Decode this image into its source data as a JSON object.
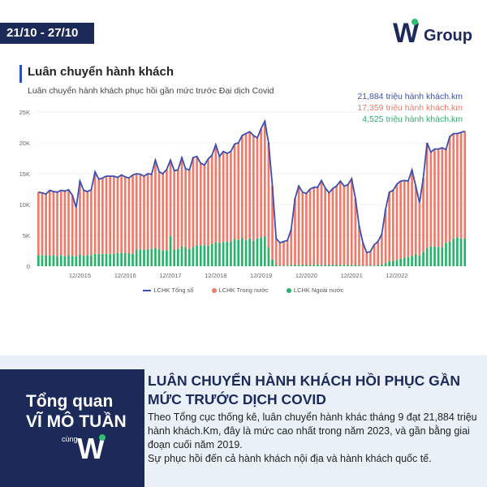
{
  "header": {
    "date_range": "21/10 - 27/10",
    "logo_letter": "W",
    "logo_text": "Group"
  },
  "chart_data": {
    "type": "bar",
    "title": "Luân chuyển hành khách",
    "subtitle": "Luân chuyển hành khách phục hồi gần mức trước Đại dịch Covid",
    "ylim": [
      0,
      25000
    ],
    "y_ticks": [
      "0",
      "5K",
      "10K",
      "15K",
      "20K",
      "25K"
    ],
    "x_ticks": [
      "12/2015",
      "12/2016",
      "12/2017",
      "12/2018",
      "12/2019",
      "12/2020",
      "12/2021",
      "12/2022"
    ],
    "callouts": [
      {
        "text": "21,884 triệu hành khách.km",
        "color": "#3b4fb0"
      },
      {
        "text": "17,359 triệu hành khách.km",
        "color": "#f07a6a"
      },
      {
        "text": "4,525 triệu hành khách.km",
        "color": "#27b36b"
      }
    ],
    "legend": [
      "LCHK Tổng số",
      "LCHK Trong nước",
      "LCHK Ngoài nước"
    ],
    "colors": {
      "total": "#3b4fb0",
      "domestic": "#f07a6a",
      "international": "#27b36b"
    },
    "series": [
      {
        "name": "LCHK Tổng số",
        "values": [
          12000,
          11900,
          11700,
          12300,
          12100,
          12000,
          12300,
          12200,
          12400,
          11500,
          9500,
          13800,
          12300,
          12100,
          12400,
          15300,
          14100,
          14300,
          14600,
          14600,
          14600,
          14400,
          14800,
          14500,
          14300,
          14800,
          15000,
          14900,
          14600,
          15000,
          14900,
          17200,
          15300,
          15000,
          15700,
          17200,
          15500,
          15600,
          17600,
          15800,
          15600,
          17600,
          17800,
          16700,
          16400,
          17400,
          18000,
          19700,
          17800,
          18600,
          18300,
          18600,
          19800,
          20000,
          21200,
          21500,
          21800,
          21200,
          20800,
          22300,
          23500,
          20000,
          13000,
          4500,
          3800,
          4000,
          4200,
          6000,
          11000,
          13000,
          12000,
          11800,
          12500,
          12800,
          12800,
          13900,
          12700,
          11900,
          12600,
          13000,
          13800,
          13000,
          13200,
          14200,
          11000,
          6500,
          3800,
          2200,
          2400,
          3500,
          4000,
          5200,
          9200,
          12000,
          12300,
          13300,
          13800,
          13900,
          13800,
          15600,
          13000,
          10300,
          14300,
          20000,
          18500,
          19000,
          19000,
          19200,
          18900,
          21000,
          21500,
          21500,
          21700,
          21884
        ]
      },
      {
        "name": "LCHK Trong nước",
        "values": [
          10200,
          10100,
          9900,
          10600,
          10300,
          10400,
          10500,
          10600,
          10600,
          9800,
          7900,
          11900,
          10600,
          10300,
          10600,
          13300,
          12100,
          12300,
          12600,
          12600,
          12600,
          12300,
          12600,
          12400,
          12200,
          12800,
          12300,
          12200,
          11900,
          12300,
          12100,
          14200,
          12600,
          12400,
          13100,
          12300,
          12800,
          12800,
          14400,
          12700,
          12800,
          14500,
          14400,
          13300,
          13000,
          14100,
          14400,
          15800,
          14000,
          14700,
          14300,
          14600,
          15400,
          15700,
          16600,
          17300,
          17300,
          17100,
          16300,
          17600,
          18700,
          16900,
          11900,
          4300,
          3700,
          3900,
          4100,
          5800,
          10800,
          12800,
          11800,
          11600,
          12300,
          12600,
          12500,
          13700,
          12500,
          11700,
          12400,
          12800,
          13600,
          12800,
          13000,
          14000,
          10800,
          6400,
          3700,
          2100,
          2300,
          3400,
          3800,
          4900,
          8700,
          11200,
          11400,
          12300,
          12600,
          12500,
          12300,
          13900,
          11000,
          8600,
          12000,
          17100,
          15300,
          15800,
          15900,
          16100,
          15100,
          17000,
          17000,
          16800,
          17200,
          17359
        ]
      },
      {
        "name": "LCHK Ngoài nước",
        "values": [
          1800,
          1800,
          1800,
          1700,
          1800,
          1600,
          1800,
          1600,
          1800,
          1700,
          1600,
          1900,
          1700,
          1800,
          1800,
          2000,
          2000,
          2000,
          2000,
          2000,
          2000,
          2100,
          2200,
          2100,
          2100,
          2000,
          2700,
          2700,
          2700,
          2700,
          2800,
          3000,
          2700,
          2600,
          2600,
          4900,
          2700,
          2800,
          3200,
          3100,
          2800,
          3100,
          3400,
          3400,
          3400,
          3300,
          3600,
          3900,
          3800,
          3900,
          4000,
          4000,
          4400,
          4300,
          4600,
          4200,
          4500,
          4100,
          4500,
          4700,
          4800,
          3100,
          1100,
          200,
          100,
          100,
          100,
          200,
          200,
          200,
          200,
          200,
          200,
          200,
          300,
          200,
          200,
          200,
          200,
          200,
          200,
          200,
          200,
          200,
          200,
          100,
          100,
          100,
          100,
          100,
          200,
          300,
          500,
          800,
          900,
          1000,
          1200,
          1400,
          1500,
          1700,
          2000,
          1700,
          2300,
          2900,
          3200,
          3200,
          3100,
          3100,
          3800,
          4000,
          4500,
          4700,
          4500,
          4525
        ]
      }
    ]
  },
  "panel": {
    "left_line1": "Tổng quan",
    "left_line2": "VĨ MÔ TUẦN",
    "left_line3": "cùng",
    "headline": "LUÂN CHUYỂN HÀNH KHÁCH HỒI PHỤC GẦN MỨC TRƯỚC DỊCH COVID",
    "body_p1": "Theo Tổng cục thống kê, luân chuyển hành khác tháng 9 đạt 21,884 triệu hành khách.Km, đây là mức cao nhất trong năm 2023, và gần bằng giai đoạn cuối năm 2019.",
    "body_p2": "Sự phục hồi đến cả hành khách nội địa và hành khách quốc tế."
  }
}
